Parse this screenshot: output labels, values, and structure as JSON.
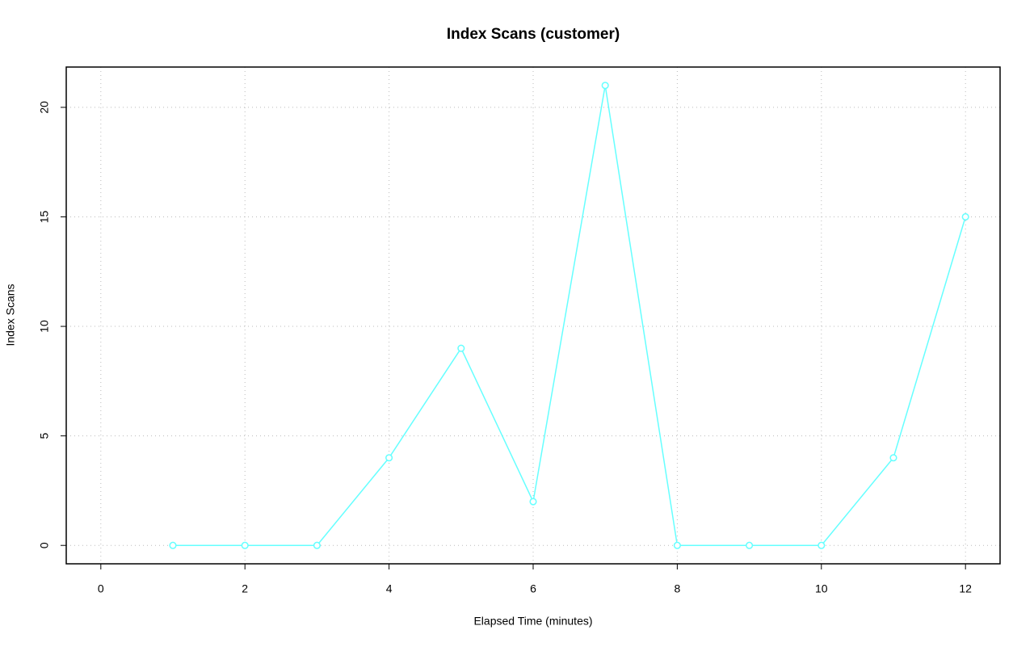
{
  "chart_data": {
    "type": "line",
    "title": "Index Scans (customer)",
    "x_label": "Elapsed Time (minutes)",
    "y_label": "Index Scans",
    "x": [
      1,
      2,
      3,
      4,
      5,
      6,
      7,
      8,
      9,
      10,
      11,
      12
    ],
    "series": [
      {
        "name": "customer",
        "color": "#66ffff",
        "values": [
          0,
          0,
          0,
          4,
          9,
          2,
          21,
          0,
          0,
          0,
          4,
          15
        ]
      }
    ],
    "xlim": [
      -0.48,
      12.48
    ],
    "ylim": [
      -0.84,
      21.84
    ],
    "xticks": [
      0,
      2,
      4,
      6,
      8,
      10,
      12
    ],
    "yticks": [
      0,
      5,
      10,
      15,
      20
    ],
    "grid": true
  }
}
